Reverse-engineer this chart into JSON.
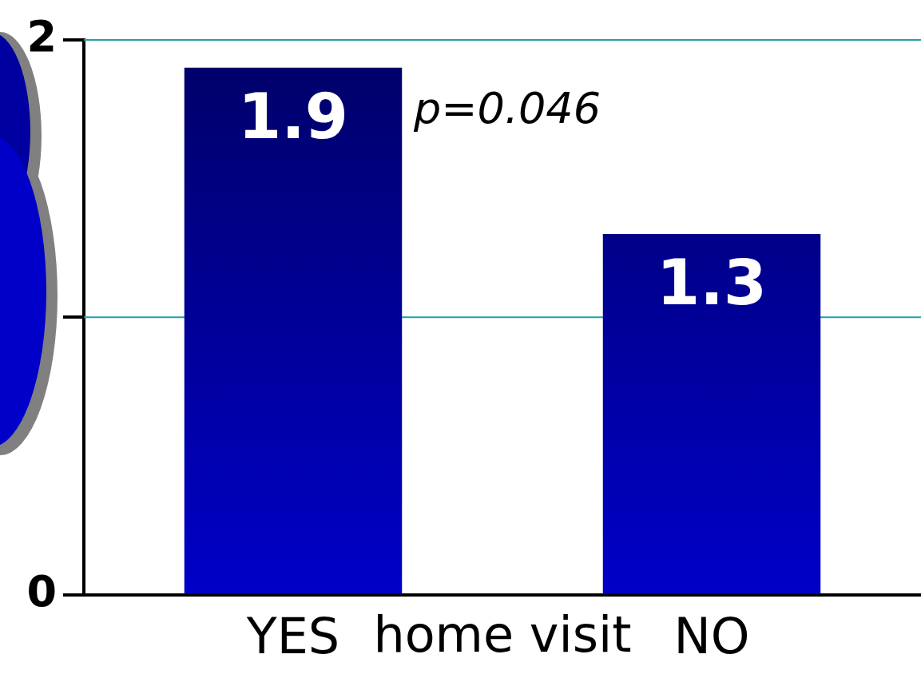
{
  "chart_data": {
    "type": "bar",
    "categories": [
      "YES",
      "NO"
    ],
    "values": [
      1.9,
      1.3
    ],
    "color": "#0000c8",
    "xlabel": "home visit",
    "annotations": [
      "p=0.046"
    ],
    "ylim": [
      0,
      2
    ],
    "yticks": [
      0,
      {
        "value": 1,
        "label": null
      },
      2
    ],
    "ref_lines": [
      {
        "axis": "y",
        "value": 1,
        "color": "#20a0a8"
      },
      {
        "axis": "y",
        "value": 2,
        "color": "#20a0a8"
      }
    ],
    "data_labels": true,
    "legend": false
  }
}
